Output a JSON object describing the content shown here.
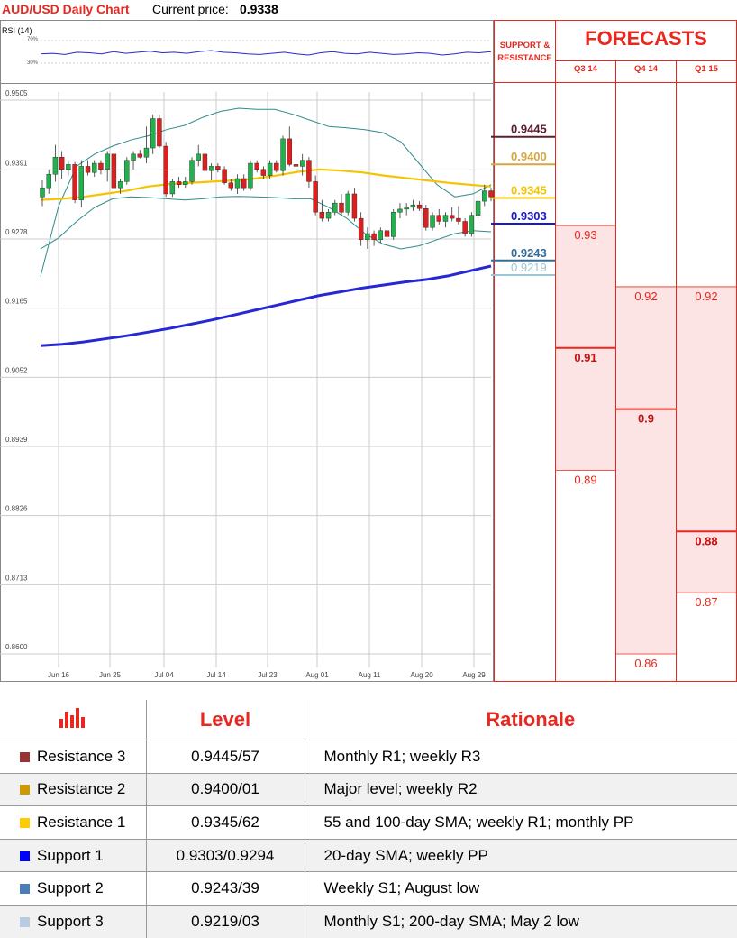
{
  "header": {
    "title": "AUD/USD Daily Chart",
    "price_label": "Current price:",
    "price": "0.9338"
  },
  "rsi": {
    "label": "RSI (14)",
    "upper": "70%",
    "lower": "30%"
  },
  "chart_data": [
    {
      "type": "candlestick",
      "title": "AUD/USD Daily Chart",
      "ylim": [
        0.86,
        0.9505
      ],
      "y_ticks": [
        "0.9505",
        "0.9391",
        "0.9278",
        "0.9165",
        "0.9052",
        "0.8939",
        "0.8826",
        "0.8713",
        "0.8600"
      ],
      "x_ticks": [
        "Jun 16",
        "Jun 25",
        "Jul 04",
        "Jul 14",
        "Jul 23",
        "Aug 01",
        "Aug 11",
        "Aug 20",
        "Aug 29"
      ],
      "candles": [
        [
          0.9335,
          0.9362,
          0.932,
          0.935
        ],
        [
          0.935,
          0.938,
          0.934,
          0.9372
        ],
        [
          0.9372,
          0.942,
          0.936,
          0.94
        ],
        [
          0.94,
          0.941,
          0.9365,
          0.938
        ],
        [
          0.938,
          0.9395,
          0.937,
          0.9388
        ],
        [
          0.9388,
          0.9392,
          0.9325,
          0.933
        ],
        [
          0.933,
          0.9395,
          0.9318,
          0.9385
        ],
        [
          0.9385,
          0.9395,
          0.937,
          0.9375
        ],
        [
          0.9375,
          0.9395,
          0.9368,
          0.939
        ],
        [
          0.939,
          0.9395,
          0.9372,
          0.938
        ],
        [
          0.938,
          0.941,
          0.936,
          0.9405
        ],
        [
          0.9405,
          0.942,
          0.9345,
          0.935
        ],
        [
          0.935,
          0.9365,
          0.934,
          0.936
        ],
        [
          0.936,
          0.94,
          0.9355,
          0.9395
        ],
        [
          0.9395,
          0.941,
          0.938,
          0.9405
        ],
        [
          0.9405,
          0.9412,
          0.9398,
          0.94
        ],
        [
          0.94,
          0.945,
          0.939,
          0.9415
        ],
        [
          0.9415,
          0.947,
          0.9405,
          0.9463
        ],
        [
          0.9463,
          0.947,
          0.9415,
          0.9418
        ],
        [
          0.9418,
          0.9425,
          0.9335,
          0.934
        ],
        [
          0.934,
          0.9365,
          0.9335,
          0.936
        ],
        [
          0.936,
          0.9368,
          0.935,
          0.9355
        ],
        [
          0.9355,
          0.9368,
          0.935,
          0.936
        ],
        [
          0.936,
          0.94,
          0.9355,
          0.9395
        ],
        [
          0.9395,
          0.942,
          0.9385,
          0.9405
        ],
        [
          0.9405,
          0.941,
          0.9375,
          0.9378
        ],
        [
          0.9378,
          0.939,
          0.9362,
          0.9385
        ],
        [
          0.9385,
          0.939,
          0.9375,
          0.938
        ],
        [
          0.938,
          0.9385,
          0.9355,
          0.9358
        ],
        [
          0.9358,
          0.9365,
          0.9345,
          0.935
        ],
        [
          0.935,
          0.9372,
          0.934,
          0.9365
        ],
        [
          0.9365,
          0.9372,
          0.9345,
          0.935
        ],
        [
          0.935,
          0.9395,
          0.9345,
          0.939
        ],
        [
          0.939,
          0.9395,
          0.9375,
          0.938
        ],
        [
          0.938,
          0.9385,
          0.9365,
          0.937
        ],
        [
          0.937,
          0.9395,
          0.9365,
          0.939
        ],
        [
          0.939,
          0.9395,
          0.9375,
          0.9378
        ],
        [
          0.9378,
          0.9435,
          0.937,
          0.943
        ],
        [
          0.943,
          0.945,
          0.9385,
          0.9388
        ],
        [
          0.9388,
          0.94,
          0.938,
          0.9385
        ],
        [
          0.9385,
          0.9405,
          0.937,
          0.9395
        ],
        [
          0.9395,
          0.94,
          0.935,
          0.936
        ],
        [
          0.936,
          0.937,
          0.9305,
          0.931
        ],
        [
          0.931,
          0.933,
          0.9295,
          0.93
        ],
        [
          0.93,
          0.9315,
          0.9295,
          0.931
        ],
        [
          0.931,
          0.933,
          0.9305,
          0.9325
        ],
        [
          0.9325,
          0.934,
          0.9305,
          0.931
        ],
        [
          0.931,
          0.9345,
          0.9305,
          0.934
        ],
        [
          0.934,
          0.935,
          0.9295,
          0.93
        ],
        [
          0.93,
          0.931,
          0.9255,
          0.9265
        ],
        [
          0.9265,
          0.9285,
          0.925,
          0.9275
        ],
        [
          0.9275,
          0.928,
          0.9255,
          0.9265
        ],
        [
          0.9265,
          0.9285,
          0.926,
          0.928
        ],
        [
          0.928,
          0.929,
          0.9265,
          0.927
        ],
        [
          0.927,
          0.9315,
          0.9265,
          0.931
        ],
        [
          0.931,
          0.9325,
          0.93,
          0.9315
        ],
        [
          0.9315,
          0.9325,
          0.9305,
          0.9318
        ],
        [
          0.9318,
          0.933,
          0.9312,
          0.9322
        ],
        [
          0.9322,
          0.9328,
          0.9312,
          0.9316
        ],
        [
          0.9316,
          0.9322,
          0.928,
          0.9285
        ],
        [
          0.9285,
          0.931,
          0.928,
          0.9305
        ],
        [
          0.9305,
          0.9315,
          0.929,
          0.9295
        ],
        [
          0.9295,
          0.931,
          0.9285,
          0.9305
        ],
        [
          0.9305,
          0.9318,
          0.9295,
          0.93
        ],
        [
          0.93,
          0.932,
          0.929,
          0.9295
        ],
        [
          0.9295,
          0.93,
          0.927,
          0.9275
        ],
        [
          0.9275,
          0.931,
          0.927,
          0.9305
        ],
        [
          0.9305,
          0.9335,
          0.93,
          0.9328
        ],
        [
          0.9328,
          0.9355,
          0.932,
          0.9345
        ],
        [
          0.9345,
          0.935,
          0.9328,
          0.9335
        ]
      ],
      "overlays": [
        {
          "name": "bb_upper",
          "color": "#2e8b8b",
          "values": [
            0.9205,
            0.932,
            0.9385,
            0.9405,
            0.9418,
            0.9428,
            0.9435,
            0.9445,
            0.9452,
            0.9465,
            0.9475,
            0.948,
            0.9478,
            0.9478,
            0.947,
            0.946,
            0.945,
            0.9448,
            0.9445,
            0.944,
            0.9425,
            0.939,
            0.9355,
            0.9335,
            0.934,
            0.9355
          ]
        },
        {
          "name": "bb_lower",
          "color": "#2e8b8b",
          "values": [
            0.925,
            0.9268,
            0.9295,
            0.9318,
            0.9332,
            0.9335,
            0.9334,
            0.9332,
            0.933,
            0.9332,
            0.9335,
            0.9336,
            0.9335,
            0.9334,
            0.9332,
            0.9332,
            0.9318,
            0.93,
            0.9275,
            0.9258,
            0.925,
            0.9255,
            0.9265,
            0.9275,
            0.928,
            0.9278
          ]
        },
        {
          "name": "sma_short",
          "color": "#f5c400",
          "values": [
            0.933,
            0.9332,
            0.9335,
            0.934,
            0.9345,
            0.9352,
            0.9356,
            0.9358,
            0.936,
            0.9362,
            0.9365,
            0.937,
            0.9376,
            0.938,
            0.9378,
            0.9375,
            0.937,
            0.9366,
            0.9362,
            0.9358,
            0.9355,
            0.9352
          ]
        },
        {
          "name": "sma_200",
          "color": "#2828d2",
          "values": [
            0.9092,
            0.9094,
            0.9098,
            0.9103,
            0.9108,
            0.9114,
            0.912,
            0.9127,
            0.9134,
            0.9142,
            0.915,
            0.9158,
            0.9166,
            0.9174,
            0.918,
            0.9186,
            0.9191,
            0.9196,
            0.92,
            0.9206,
            0.9214,
            0.9222
          ]
        }
      ]
    },
    {
      "type": "table",
      "title": "FORECASTS",
      "columns": [
        "Q3 14",
        "Q4 14",
        "Q1 15"
      ],
      "levels": [
        {
          "col": 0,
          "value": 0.93,
          "label": "0.93",
          "bold": false,
          "red_line": false
        },
        {
          "col": 0,
          "value": 0.91,
          "label": "0.91",
          "bold": true,
          "red_line": true
        },
        {
          "col": 0,
          "value": 0.89,
          "label": "0.89",
          "bold": false,
          "red_line": false
        },
        {
          "col": 1,
          "value": 0.92,
          "label": "0.92",
          "bold": false,
          "red_line": false
        },
        {
          "col": 1,
          "value": 0.9,
          "label": "0.9",
          "bold": true,
          "red_line": true
        },
        {
          "col": 1,
          "value": 0.86,
          "label": "0.86",
          "bold": false,
          "red_line": false
        },
        {
          "col": 2,
          "value": 0.92,
          "label": "0.92",
          "bold": false,
          "red_line": false
        },
        {
          "col": 2,
          "value": 0.88,
          "label": "0.88",
          "bold": true,
          "red_line": true
        },
        {
          "col": 2,
          "value": 0.87,
          "label": "0.87",
          "bold": false,
          "red_line": false
        }
      ],
      "ranges": [
        [
          0.89,
          0.93
        ],
        [
          0.86,
          0.92
        ],
        [
          0.87,
          0.92
        ]
      ]
    }
  ],
  "support_resistance": {
    "title_line1": "SUPPORT &",
    "title_line2": "RESISTANCE",
    "levels": [
      {
        "label": "0.9445",
        "value": 0.9445,
        "color": "#5a1e2e"
      },
      {
        "label": "0.9400",
        "value": 0.94,
        "color": "#d6a640"
      },
      {
        "label": "0.9345",
        "value": 0.9345,
        "color": "#f5c400"
      },
      {
        "label": "0.9303",
        "value": 0.9303,
        "color": "#1818c8"
      },
      {
        "label": "0.9243",
        "value": 0.9243,
        "color": "#336e99"
      },
      {
        "label": "0.9219",
        "value": 0.9219,
        "color": "#9ac5d6"
      }
    ]
  },
  "table": {
    "header": {
      "level": "Level",
      "rationale": "Rationale",
      "icon": "bar-chart-icon"
    },
    "rows": [
      {
        "name": "Resistance 3",
        "color": "#993333",
        "level": "0.9445/57",
        "rationale": "Monthly R1; weekly R3"
      },
      {
        "name": "Resistance 2",
        "color": "#cc9900",
        "level": "0.9400/01",
        "rationale": "Major level; weekly R2"
      },
      {
        "name": "Resistance 1",
        "color": "#ffcc00",
        "level": "0.9345/62",
        "rationale": "55 and 100-day SMA; weekly R1; monthly PP"
      },
      {
        "name": "Support 1",
        "color": "#0000ff",
        "level": "0.9303/0.9294",
        "rationale": "20-day SMA; weekly PP"
      },
      {
        "name": "Support 2",
        "color": "#4a7eba",
        "level": "0.9243/39",
        "rationale": "Weekly S1; August low"
      },
      {
        "name": "Support 3",
        "color": "#b7cce3",
        "level": "0.9219/03",
        "rationale": "Monthly S1; 200-day SMA; May 2 low"
      }
    ]
  }
}
